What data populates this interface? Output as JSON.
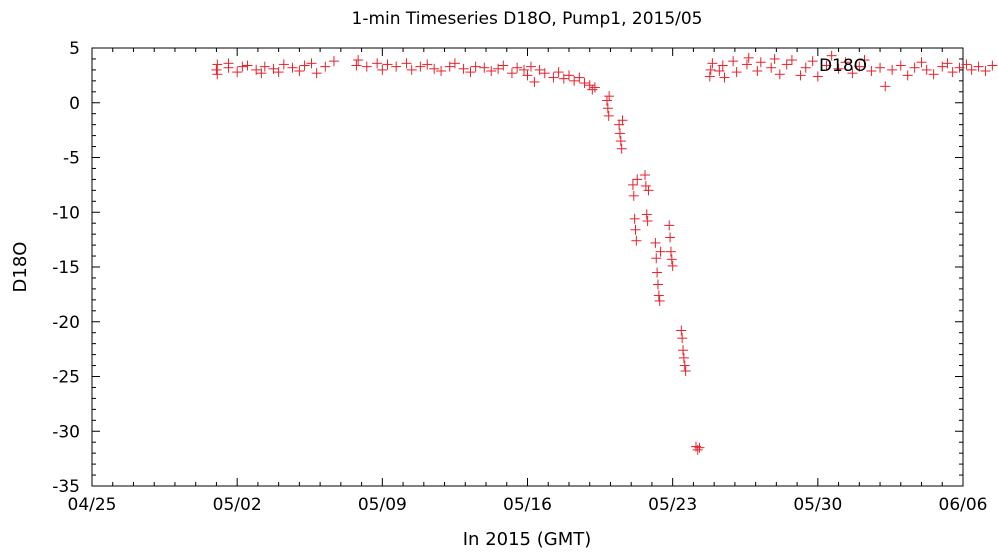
{
  "chart_data": {
    "type": "scatter",
    "title": "1-min Timeseries D18O, Pump1, 2015/05",
    "xlabel": "In 2015 (GMT)",
    "ylabel": "D18O",
    "legend": {
      "label": "D18O",
      "placement": "top-right"
    },
    "xlim": [
      "2015-04-25",
      "2015-06-06"
    ],
    "ylim": [
      -35,
      5
    ],
    "grid": false,
    "marker": "plus",
    "series_color": "#e8202a",
    "x_ticks": [
      "04/25",
      "05/02",
      "05/09",
      "05/16",
      "05/23",
      "05/30",
      "06/06"
    ],
    "y_ticks": [
      "5",
      "0",
      "-5",
      "-10",
      "-15",
      "-20",
      "-25",
      "-30",
      "-35"
    ],
    "series": [
      {
        "name": "D18O",
        "points": [
          [
            "2015-05-01T00:00",
            3.0
          ],
          [
            "2015-05-01T01:00",
            2.6
          ],
          [
            "2015-05-01T01:00",
            3.5
          ],
          [
            "2015-05-01T14:00",
            3.2
          ],
          [
            "2015-05-01T14:00",
            3.6
          ],
          [
            "2015-05-02T00:00",
            2.8
          ],
          [
            "2015-05-02T06:00",
            3.3
          ],
          [
            "2015-05-02T12:00",
            3.4
          ],
          [
            "2015-05-02T22:00",
            3.0
          ],
          [
            "2015-05-03T04:00",
            2.7
          ],
          [
            "2015-05-03T08:00",
            3.3
          ],
          [
            "2015-05-03T18:00",
            3.1
          ],
          [
            "2015-05-04T00:00",
            2.8
          ],
          [
            "2015-05-04T06:00",
            3.5
          ],
          [
            "2015-05-04T16:00",
            3.2
          ],
          [
            "2015-05-05T00:00",
            2.9
          ],
          [
            "2015-05-05T06:00",
            3.4
          ],
          [
            "2015-05-05T14:00",
            3.6
          ],
          [
            "2015-05-05T20:00",
            2.7
          ],
          [
            "2015-05-06T06:00",
            3.3
          ],
          [
            "2015-05-06T16:00",
            3.8
          ],
          [
            "2015-05-07T18:00",
            3.4
          ],
          [
            "2015-05-07T20:00",
            3.9
          ],
          [
            "2015-05-08T06:00",
            3.3
          ],
          [
            "2015-05-08T18:00",
            3.6
          ],
          [
            "2015-05-09T00:00",
            3.0
          ],
          [
            "2015-05-09T06:00",
            3.5
          ],
          [
            "2015-05-09T16:00",
            3.3
          ],
          [
            "2015-05-10T04:00",
            3.6
          ],
          [
            "2015-05-10T10:00",
            3.0
          ],
          [
            "2015-05-10T20:00",
            3.3
          ],
          [
            "2015-05-11T04:00",
            3.5
          ],
          [
            "2015-05-11T12:00",
            3.1
          ],
          [
            "2015-05-11T20:00",
            2.9
          ],
          [
            "2015-05-12T06:00",
            3.3
          ],
          [
            "2015-05-12T12:00",
            3.6
          ],
          [
            "2015-05-12T22:00",
            3.1
          ],
          [
            "2015-05-13T06:00",
            2.8
          ],
          [
            "2015-05-13T12:00",
            3.3
          ],
          [
            "2015-05-13T22:00",
            3.2
          ],
          [
            "2015-05-14T06:00",
            2.9
          ],
          [
            "2015-05-14T14:00",
            3.1
          ],
          [
            "2015-05-14T20:00",
            3.4
          ],
          [
            "2015-05-15T06:00",
            2.7
          ],
          [
            "2015-05-15T12:00",
            3.2
          ],
          [
            "2015-05-15T20:00",
            3.0
          ],
          [
            "2015-05-16T00:00",
            2.5
          ],
          [
            "2015-05-16T04:00",
            3.3
          ],
          [
            "2015-05-16T08:00",
            1.9
          ],
          [
            "2015-05-16T14:00",
            3.0
          ],
          [
            "2015-05-16T20:00",
            2.7
          ],
          [
            "2015-05-17T06:00",
            2.3
          ],
          [
            "2015-05-17T12:00",
            2.8
          ],
          [
            "2015-05-17T18:00",
            2.2
          ],
          [
            "2015-05-18T00:00",
            2.5
          ],
          [
            "2015-05-18T06:00",
            2.0
          ],
          [
            "2015-05-18T12:00",
            2.3
          ],
          [
            "2015-05-18T18:00",
            1.8
          ],
          [
            "2015-05-19T00:00",
            1.6
          ],
          [
            "2015-05-19T03:00",
            1.2
          ],
          [
            "2015-05-19T06:00",
            1.4
          ],
          [
            "2015-05-19T20:00",
            0.2
          ],
          [
            "2015-05-19T21:00",
            -0.5
          ],
          [
            "2015-05-19T22:00",
            -1.2
          ],
          [
            "2015-05-19T22:30",
            0.6
          ],
          [
            "2015-05-20T10:00",
            -2.0
          ],
          [
            "2015-05-20T11:00",
            -2.8
          ],
          [
            "2015-05-20T12:00",
            -3.5
          ],
          [
            "2015-05-20T13:00",
            -4.2
          ],
          [
            "2015-05-20T14:00",
            -1.6
          ],
          [
            "2015-05-21T02:00",
            -7.5
          ],
          [
            "2015-05-21T03:00",
            -8.5
          ],
          [
            "2015-05-21T04:00",
            -10.6
          ],
          [
            "2015-05-21T05:00",
            -11.6
          ],
          [
            "2015-05-21T06:00",
            -12.6
          ],
          [
            "2015-05-21T07:00",
            -7.0
          ],
          [
            "2015-05-21T16:00",
            -6.6
          ],
          [
            "2015-05-21T17:00",
            -7.6
          ],
          [
            "2015-05-21T18:00",
            -10.2
          ],
          [
            "2015-05-21T19:00",
            -10.8
          ],
          [
            "2015-05-21T20:00",
            -8.0
          ],
          [
            "2015-05-22T04:00",
            -12.8
          ],
          [
            "2015-05-22T05:00",
            -14.2
          ],
          [
            "2015-05-22T06:00",
            -15.5
          ],
          [
            "2015-05-22T07:00",
            -16.6
          ],
          [
            "2015-05-22T08:00",
            -17.6
          ],
          [
            "2015-05-22T09:00",
            -18.1
          ],
          [
            "2015-05-22T10:00",
            -13.6
          ],
          [
            "2015-05-22T20:00",
            -11.2
          ],
          [
            "2015-05-22T21:00",
            -12.3
          ],
          [
            "2015-05-22T22:00",
            -13.6
          ],
          [
            "2015-05-22T23:00",
            -14.3
          ],
          [
            "2015-05-23T00:00",
            -14.9
          ],
          [
            "2015-05-23T10:00",
            -20.8
          ],
          [
            "2015-05-23T11:00",
            -21.5
          ],
          [
            "2015-05-23T12:00",
            -22.6
          ],
          [
            "2015-05-23T13:00",
            -23.3
          ],
          [
            "2015-05-23T14:00",
            -24.0
          ],
          [
            "2015-05-23T15:00",
            -24.5
          ],
          [
            "2015-05-24T03:00",
            -31.4
          ],
          [
            "2015-05-24T05:00",
            -31.7
          ],
          [
            "2015-05-24T07:00",
            -31.5
          ],
          [
            "2015-05-24T19:00",
            2.4
          ],
          [
            "2015-05-24T20:00",
            3.0
          ],
          [
            "2015-05-24T22:00",
            3.6
          ],
          [
            "2015-05-25T06:00",
            2.9
          ],
          [
            "2015-05-25T10:00",
            3.4
          ],
          [
            "2015-05-25T12:00",
            2.3
          ],
          [
            "2015-05-25T22:00",
            3.8
          ],
          [
            "2015-05-26T02:00",
            2.8
          ],
          [
            "2015-05-26T14:00",
            3.5
          ],
          [
            "2015-05-26T16:00",
            4.1
          ],
          [
            "2015-05-27T02:00",
            2.9
          ],
          [
            "2015-05-27T06:00",
            3.7
          ],
          [
            "2015-05-27T18:00",
            3.2
          ],
          [
            "2015-05-27T22:00",
            4.0
          ],
          [
            "2015-05-28T04:00",
            2.6
          ],
          [
            "2015-05-28T12:00",
            3.5
          ],
          [
            "2015-05-28T18:00",
            3.9
          ],
          [
            "2015-05-29T04:00",
            2.5
          ],
          [
            "2015-05-29T10:00",
            3.2
          ],
          [
            "2015-05-29T18:00",
            3.8
          ],
          [
            "2015-05-30T00:00",
            2.4
          ],
          [
            "2015-05-30T10:00",
            3.4
          ],
          [
            "2015-05-30T16:00",
            4.3
          ],
          [
            "2015-05-31T00:00",
            3.1
          ],
          [
            "2015-05-31T08:00",
            3.7
          ],
          [
            "2015-05-31T16:00",
            2.7
          ],
          [
            "2015-06-01T00:00",
            3.3
          ],
          [
            "2015-06-01T06:00",
            3.9
          ],
          [
            "2015-06-01T14:00",
            2.9
          ],
          [
            "2015-06-02T00:00",
            3.2
          ],
          [
            "2015-06-02T06:00",
            1.5
          ],
          [
            "2015-06-02T14:00",
            3.0
          ],
          [
            "2015-06-03T00:00",
            3.4
          ],
          [
            "2015-06-03T08:00",
            2.5
          ],
          [
            "2015-06-03T16:00",
            3.2
          ],
          [
            "2015-06-04T00:00",
            3.7
          ],
          [
            "2015-06-04T06:00",
            3.0
          ],
          [
            "2015-06-04T14:00",
            2.6
          ],
          [
            "2015-06-05T00:00",
            3.3
          ],
          [
            "2015-06-05T06:00",
            3.6
          ],
          [
            "2015-06-05T12:00",
            2.8
          ],
          [
            "2015-06-05T20:00",
            3.2
          ],
          [
            "2015-06-06T04:00",
            3.5
          ],
          [
            "2015-06-06T10:00",
            3.0
          ],
          [
            "2015-06-06T18:00",
            3.3
          ],
          [
            "2015-06-07T02:00",
            2.9
          ],
          [
            "2015-06-07T10:00",
            3.4
          ]
        ]
      }
    ]
  }
}
